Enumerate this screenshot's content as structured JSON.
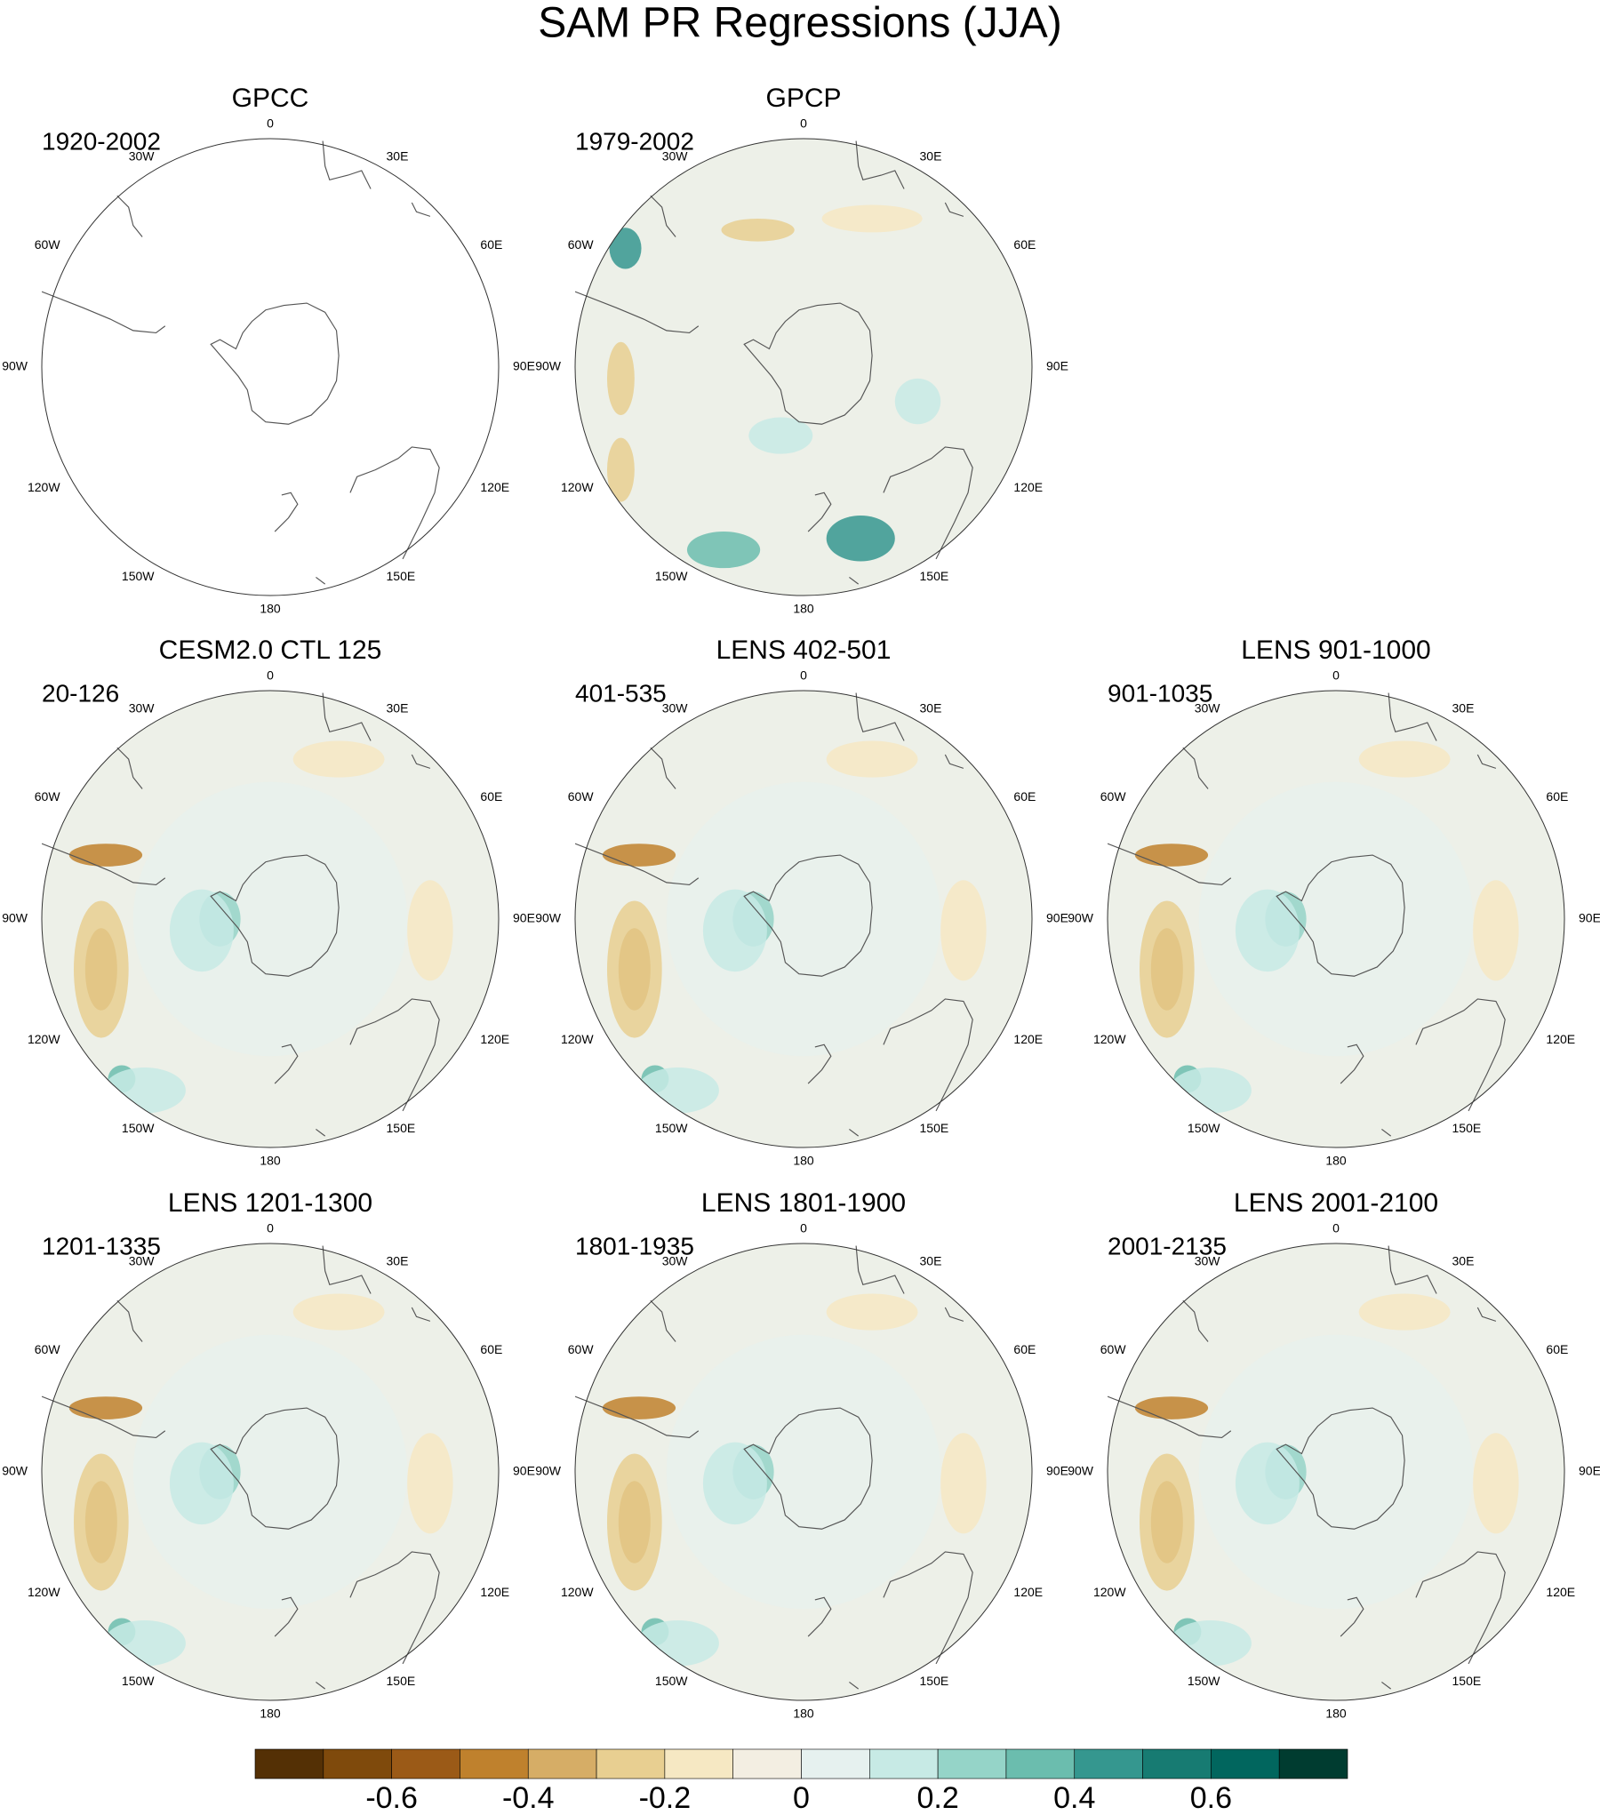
{
  "title": "SAM PR Regressions (JJA)",
  "panels": [
    {
      "title": "GPCC",
      "years": "1920-2002"
    },
    {
      "title": "GPCP",
      "years": "1979-2002"
    },
    {
      "title": "CESM2.0 CTL 125",
      "years": "20-126"
    },
    {
      "title": "LENS 402-501",
      "years": "401-535"
    },
    {
      "title": "LENS 901-1000",
      "years": "901-1035"
    },
    {
      "title": "LENS 1201-1300",
      "years": "1201-1335"
    },
    {
      "title": "LENS 1801-1900",
      "years": "1801-1935"
    },
    {
      "title": "LENS 2001-2100",
      "years": "2001-2135"
    }
  ],
  "lon_labels": [
    "0",
    "30E",
    "60E",
    "90E",
    "120E",
    "150E",
    "180",
    "150W",
    "120W",
    "90W",
    "60W",
    "30W"
  ],
  "colorbar": {
    "colors": [
      "#543005",
      "#7f4a0c",
      "#9b5a17",
      "#bf812d",
      "#d6ad66",
      "#e8cf91",
      "#f6e8c3",
      "#f3eee2",
      "#e6f1ef",
      "#c7eae5",
      "#95d4c8",
      "#6bbdae",
      "#35978f",
      "#177b72",
      "#01665e",
      "#003c30"
    ],
    "lim": [
      -0.8,
      0.8
    ],
    "ticks": [
      -0.6,
      -0.4,
      -0.2,
      0,
      0.2,
      0.4,
      0.6
    ]
  }
}
